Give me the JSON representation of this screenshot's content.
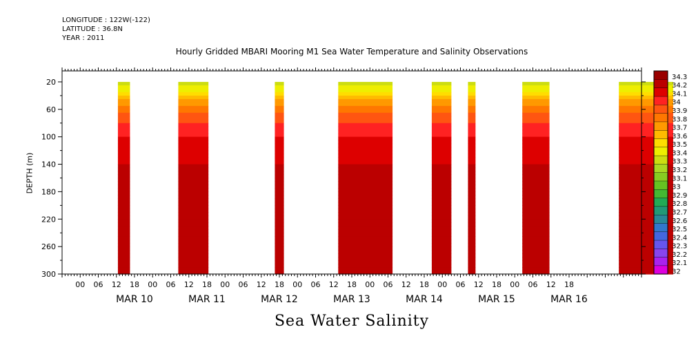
{
  "header": {
    "longitude": "LONGITUDE : 122W(-122)",
    "latitude": "LATITUDE : 36.8N",
    "year": "YEAR : 2011"
  },
  "chart_data": {
    "type": "heatmap",
    "title": "Hourly Gridded MBARI Mooring M1 Sea Water Temperature and Salinity Observations",
    "bottom_title": "Sea Water Salinity",
    "ylabel": "DEPTH (m)",
    "xlabel": "",
    "x_hour_ticks": [
      "00",
      "06",
      "12",
      "18",
      "00",
      "06",
      "12",
      "18",
      "00",
      "06",
      "12",
      "18",
      "00",
      "06",
      "12",
      "18",
      "00",
      "06",
      "12",
      "18",
      "00",
      "06",
      "12",
      "18",
      "00",
      "06",
      "12",
      "18"
    ],
    "x_day_labels": [
      "MAR 10",
      "MAR 11",
      "MAR 12",
      "MAR 13",
      "MAR 14",
      "MAR 15",
      "MAR 16"
    ],
    "x_range_hours": [
      -12,
      180
    ],
    "y_ticks": [
      20,
      60,
      100,
      140,
      180,
      220,
      260,
      300
    ],
    "ylim": [
      300,
      4
    ],
    "colorbar": {
      "levels": [
        "32",
        "32.1",
        "32.2",
        "32.3",
        "32.4",
        "32.5",
        "32.6",
        "32.7",
        "32.8",
        "32.9",
        "33",
        "33.1",
        "33.2",
        "33.3",
        "33.4",
        "33.5",
        "33.6",
        "33.7",
        "33.8",
        "33.9",
        "34",
        "34.1",
        "34.2",
        "34.3"
      ],
      "colors": [
        "#dd00dd",
        "#aa22ee",
        "#8844ee",
        "#6655ee",
        "#4466dd",
        "#3377cc",
        "#2a8899",
        "#229977",
        "#22aa55",
        "#44b833",
        "#66c222",
        "#88cc22",
        "#aad822",
        "#ccdd11",
        "#eeee00",
        "#ffdd00",
        "#ffbb00",
        "#ff9900",
        "#ff7700",
        "#ff5511",
        "#ff2222",
        "#dd0000",
        "#bb0000",
        "#990000"
      ]
    },
    "segments_hours": [
      [
        6.5,
        10.5
      ],
      [
        26.5,
        36.5
      ],
      [
        58.5,
        61.5
      ],
      [
        79.5,
        97.5
      ],
      [
        110.5,
        117
      ],
      [
        122.5,
        125
      ],
      [
        140.5,
        149.5
      ],
      [
        172.5,
        190.5
      ]
    ],
    "profile": {
      "depth": [
        20,
        30,
        40,
        50,
        60,
        70,
        80,
        90,
        100,
        120,
        140,
        180,
        220,
        240,
        270,
        300
      ],
      "salinity": [
        33.3,
        33.45,
        33.6,
        33.75,
        33.85,
        33.95,
        34.0,
        34.05,
        34.1,
        34.15,
        34.2,
        34.22,
        34.25,
        34.3,
        34.3,
        34.22
      ]
    }
  }
}
